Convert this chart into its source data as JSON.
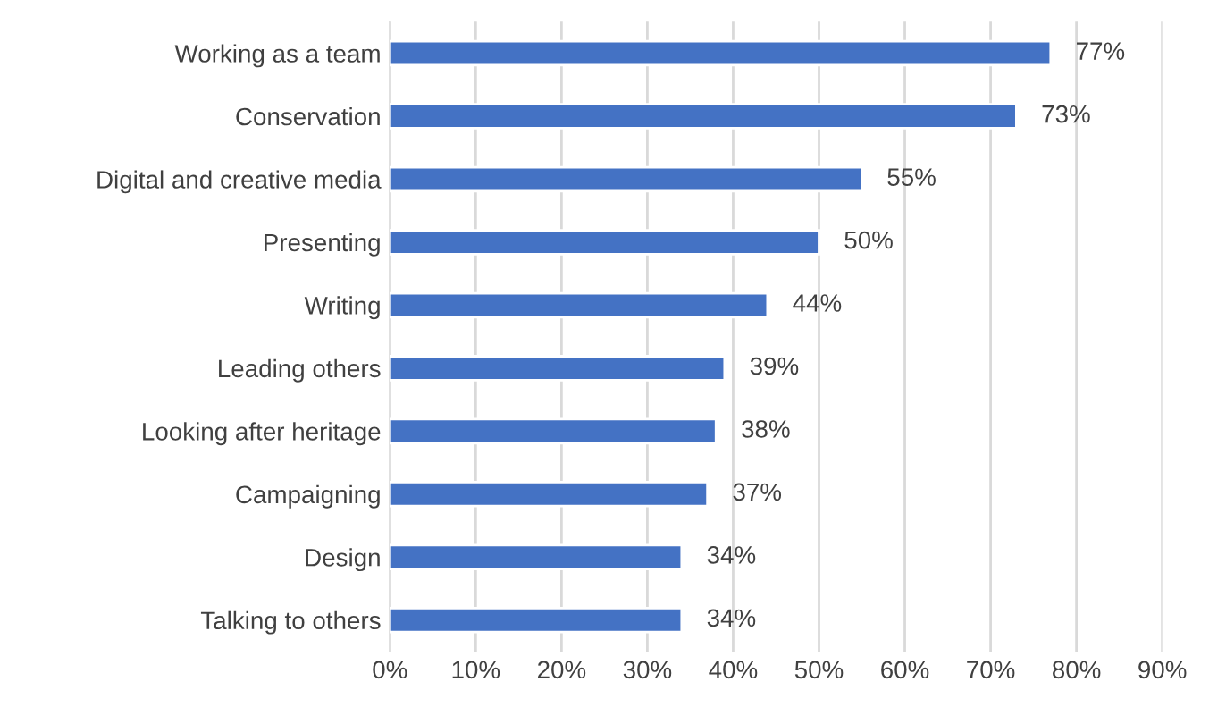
{
  "chart_data": {
    "type": "bar",
    "orientation": "horizontal",
    "categories": [
      "Working as a team",
      "Conservation",
      "Digital and creative media",
      "Presenting",
      "Writing",
      "Leading others",
      "Looking after heritage",
      "Campaigning",
      "Design",
      "Talking to others"
    ],
    "values": [
      77,
      73,
      55,
      50,
      44,
      39,
      38,
      37,
      34,
      34
    ],
    "value_labels": [
      "77%",
      "73%",
      "55%",
      "50%",
      "44%",
      "39%",
      "38%",
      "37%",
      "34%",
      "34%"
    ],
    "color": "#4472c4",
    "xlim": [
      0,
      90
    ],
    "xticks": [
      {
        "value": 0,
        "label": "0%"
      },
      {
        "value": 10,
        "label": "10%"
      },
      {
        "value": 20,
        "label": "20%"
      },
      {
        "value": 30,
        "label": "30%"
      },
      {
        "value": 40,
        "label": "40%"
      },
      {
        "value": 50,
        "label": "50%"
      },
      {
        "value": 60,
        "label": "60%"
      },
      {
        "value": 70,
        "label": "70%"
      },
      {
        "value": 80,
        "label": "80%"
      },
      {
        "value": 90,
        "label": "90%"
      }
    ],
    "grid": "x"
  }
}
